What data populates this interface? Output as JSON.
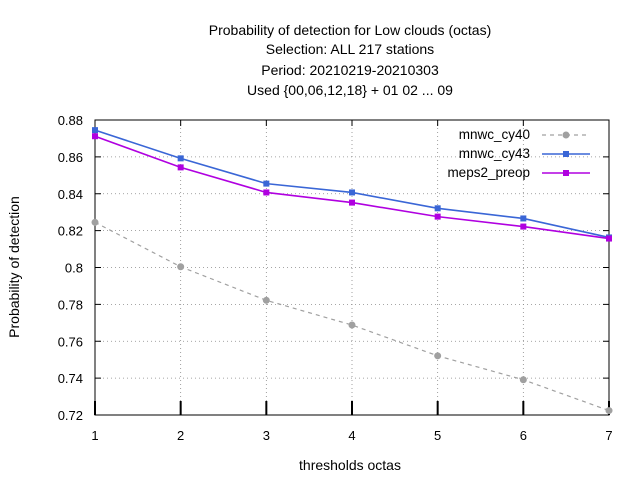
{
  "chart_data": {
    "type": "line",
    "title_lines": [
      "Probability of detection  for Low clouds (octas)",
      "Selection: ALL    217 stations",
      "Period: 20210219-20210303",
      "Used {00,06,12,18} + 01 02 ... 09"
    ],
    "xlabel": "thresholds octas",
    "ylabel": "Probability of detection",
    "x": [
      1,
      2,
      3,
      4,
      5,
      6,
      7
    ],
    "xlim": [
      1,
      7
    ],
    "ylim": [
      0.72,
      0.88
    ],
    "yticks": [
      "0.72",
      "0.74",
      "0.76",
      "0.78",
      "0.8",
      "0.82",
      "0.84",
      "0.86",
      "0.88"
    ],
    "xticks": [
      "1",
      "2",
      "3",
      "4",
      "5",
      "6",
      "7"
    ],
    "grid": true,
    "legend_position": "top-right",
    "series": [
      {
        "name": "mnwc_cy40",
        "color": "#a0a0a0",
        "dash": true,
        "values": [
          0.8245,
          0.8004,
          0.7822,
          0.7688,
          0.7521,
          0.7391,
          0.7224
        ]
      },
      {
        "name": "mnwc_cy43",
        "color": "#3a66d6",
        "dash": false,
        "values": [
          0.8745,
          0.8592,
          0.8455,
          0.8407,
          0.8321,
          0.8266,
          0.8163
        ]
      },
      {
        "name": "meps2_preop",
        "color": "#b000e0",
        "dash": false,
        "values": [
          0.8712,
          0.8543,
          0.8407,
          0.8352,
          0.8276,
          0.8222,
          0.8157
        ]
      }
    ]
  }
}
